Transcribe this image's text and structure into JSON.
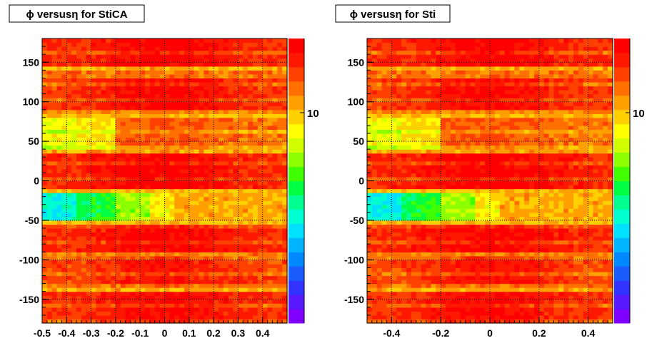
{
  "chart_data": [
    {
      "type": "heatmap",
      "title": "ϕ versusη for StiCA",
      "xlabel": "",
      "ylabel": "",
      "xlim": [
        -0.5,
        0.5
      ],
      "ylim": [
        -180,
        180
      ],
      "x_ticks": [
        "-0.5",
        "-0.4",
        "-0.3",
        "-0.2",
        "-0.1",
        "0",
        "0.1",
        "0.2",
        "0.3",
        "0.4"
      ],
      "x_tick_values": [
        -0.5,
        -0.4,
        -0.3,
        -0.2,
        -0.1,
        0,
        0.1,
        0.2,
        0.3,
        0.4
      ],
      "y_ticks": [
        "150",
        "100",
        "50",
        "0",
        "-50",
        "-100",
        "-150"
      ],
      "y_tick_values": [
        150,
        100,
        50,
        0,
        -50,
        -100,
        -150
      ],
      "colorbar_label": "10",
      "grid": true,
      "description_bands": [
        {
          "phi_range": [
            145,
            180
          ],
          "level": "high"
        },
        {
          "phi_range": [
            90,
            130
          ],
          "level": "high"
        },
        {
          "phi_range": [
            40,
            80
          ],
          "level": "medium-low at eta<-0.2"
        },
        {
          "phi_range": [
            -10,
            40
          ],
          "level": "high"
        },
        {
          "phi_range": [
            -50,
            -15
          ],
          "level": "low"
        },
        {
          "phi_range": [
            -90,
            -50
          ],
          "level": "high"
        },
        {
          "phi_range": [
            -180,
            -95
          ],
          "level": "high-medium"
        }
      ]
    },
    {
      "type": "heatmap",
      "title": "ϕ versusη for Sti",
      "xlabel": "",
      "ylabel": "",
      "xlim": [
        -0.5,
        0.5
      ],
      "ylim": [
        -180,
        180
      ],
      "x_ticks": [
        "-0.4",
        "-0.2",
        "0",
        "0.2",
        "0.4"
      ],
      "x_tick_values": [
        -0.4,
        -0.2,
        0,
        0.2,
        0.4
      ],
      "y_ticks": [
        "150",
        "100",
        "50",
        "0",
        "-50",
        "-100",
        "-150"
      ],
      "y_tick_values": [
        150,
        100,
        50,
        0,
        -50,
        -100,
        -150
      ],
      "colorbar_label": "10",
      "grid": true
    }
  ],
  "palette": [
    "#7f00ff",
    "#5a1aff",
    "#3333ff",
    "#1a5cff",
    "#0088ff",
    "#00b4ff",
    "#00e0ff",
    "#00ffd0",
    "#00ff90",
    "#00ff40",
    "#40ff00",
    "#8cff00",
    "#d0ff00",
    "#ffff00",
    "#ffd000",
    "#ffa000",
    "#ff7000",
    "#ff4000",
    "#ff1800",
    "#ff0000"
  ]
}
